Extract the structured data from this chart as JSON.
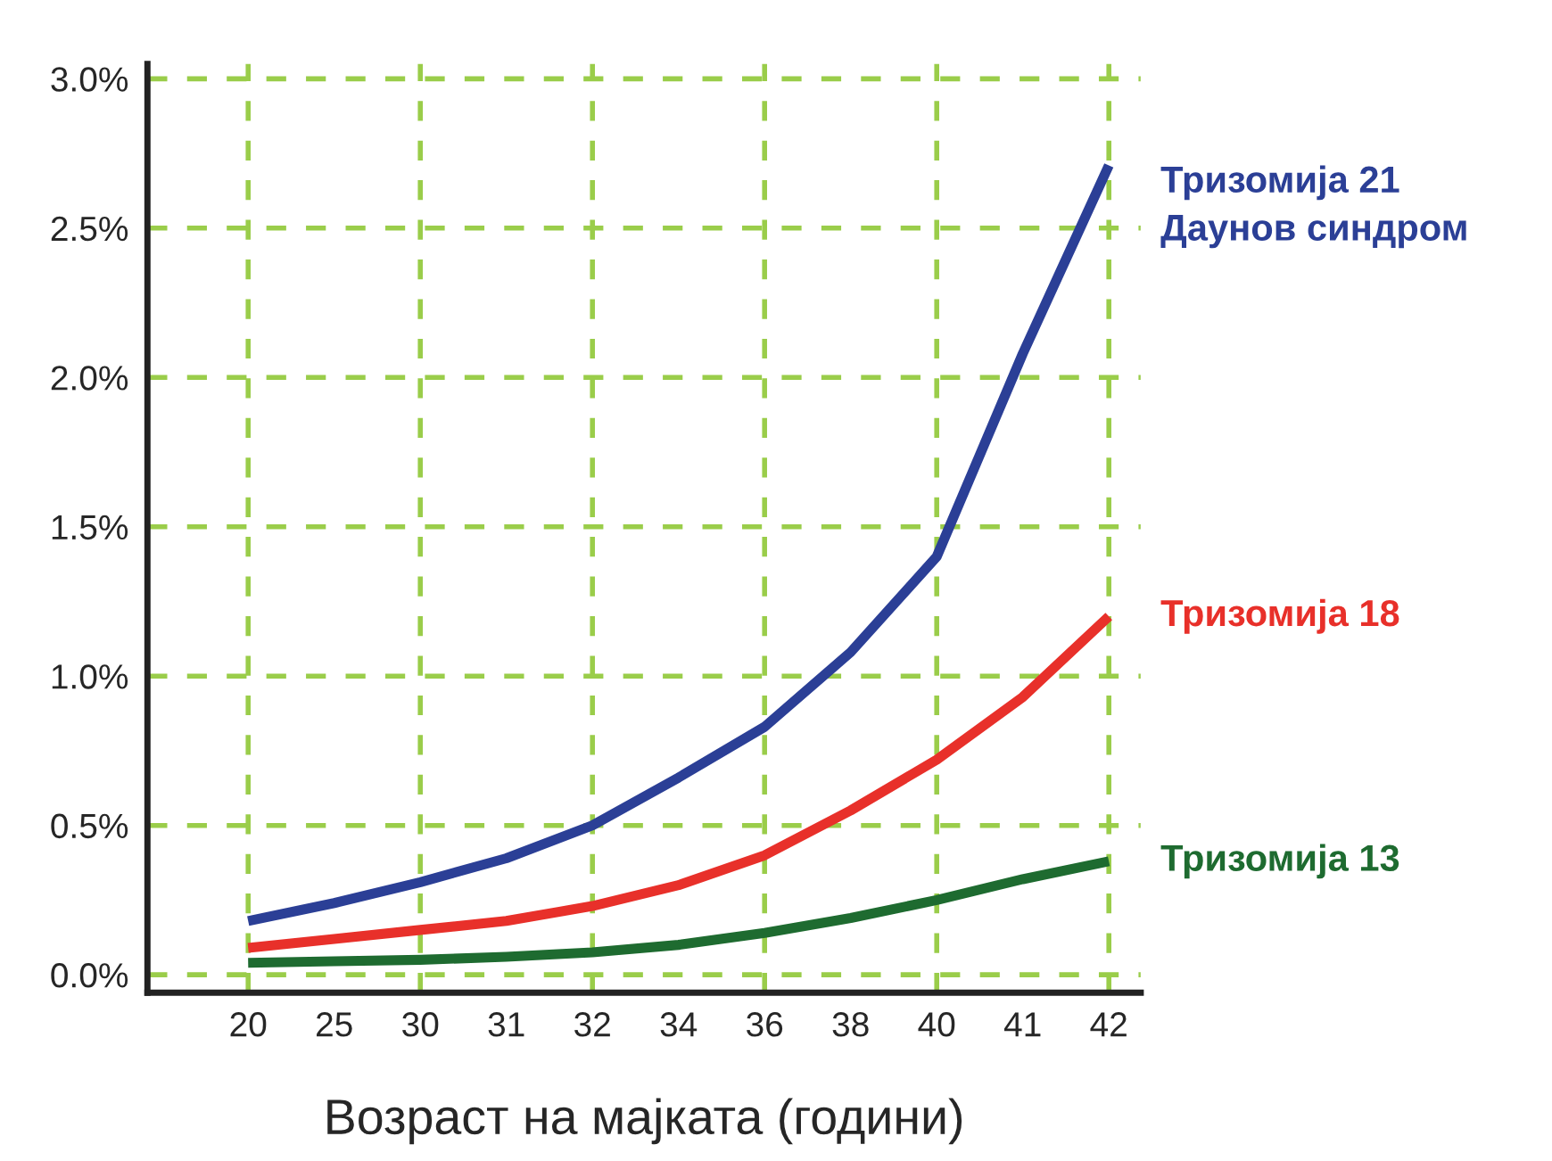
{
  "chart_data": {
    "type": "line",
    "xlabel": "Возраст на мајката (години)",
    "categories": [
      "20",
      "25",
      "30",
      "31",
      "32",
      "34",
      "36",
      "38",
      "40",
      "41",
      "42"
    ],
    "series": [
      {
        "name": "Тризомија 21\nДаунов синдром",
        "color": "#2b3f96",
        "values": [
          0.18,
          0.24,
          0.31,
          0.39,
          0.5,
          0.66,
          0.83,
          1.08,
          1.4,
          2.08,
          2.71
        ]
      },
      {
        "name": "Тризомија 18",
        "color": "#e8302a",
        "values": [
          0.09,
          0.12,
          0.15,
          0.18,
          0.23,
          0.3,
          0.4,
          0.55,
          0.72,
          0.93,
          1.2
        ]
      },
      {
        "name": "Тризомија 13",
        "color": "#1e6b30",
        "values": [
          0.04,
          0.045,
          0.05,
          0.06,
          0.075,
          0.1,
          0.14,
          0.19,
          0.25,
          0.32,
          0.38
        ]
      }
    ],
    "ylim": [
      -0.06,
      3.05
    ],
    "yticks": [
      {
        "value": 0,
        "label": "0.0%"
      },
      {
        "value": 0.5,
        "label": "0.5%"
      },
      {
        "value": 1,
        "label": "1.0%"
      },
      {
        "value": 1.5,
        "label": "1.5%"
      },
      {
        "value": 2,
        "label": "2.0%"
      },
      {
        "value": 2.5,
        "label": "2.5%"
      },
      {
        "value": 3,
        "label": "3.0%"
      }
    ],
    "grid": true,
    "legend": false,
    "marker": "none",
    "line_style": "solid"
  }
}
